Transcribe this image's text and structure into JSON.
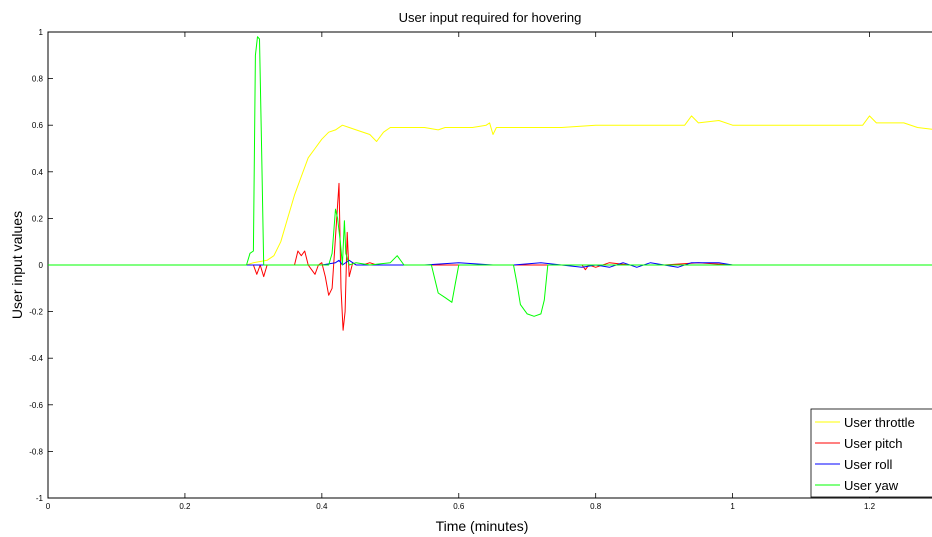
{
  "chart_data": {
    "type": "line",
    "title": "User input required for hovering",
    "xlabel": "Time (minutes)",
    "ylabel": "User input values",
    "xlim": [
      0,
      1.3
    ],
    "ylim": [
      -1,
      1
    ],
    "xticks": [
      0,
      0.2,
      0.4,
      0.6,
      0.8,
      1,
      1.2
    ],
    "xtick_labels": [
      "0",
      "0.2",
      "0.4",
      "0.6",
      "0.8",
      "1",
      "1.2"
    ],
    "yticks": [
      1,
      0.8,
      0.6,
      0.4,
      0.2,
      0,
      -0.2,
      -0.4,
      -0.6,
      -0.8,
      -1
    ],
    "ytick_labels": [
      "1",
      "0.8",
      "0.6",
      "0.4",
      "0.2",
      "0",
      "-0.2",
      "-0.4",
      "-0.6",
      "-0.8",
      "-1"
    ],
    "grid": false,
    "legend_position": "bottom-right",
    "series": [
      {
        "name": "User throttle",
        "color": "#ffff00",
        "points": [
          [
            0,
            0
          ],
          [
            0.29,
            0
          ],
          [
            0.3,
            0.01
          ],
          [
            0.32,
            0.02
          ],
          [
            0.33,
            0.04
          ],
          [
            0.34,
            0.1
          ],
          [
            0.35,
            0.2
          ],
          [
            0.36,
            0.3
          ],
          [
            0.37,
            0.38
          ],
          [
            0.38,
            0.46
          ],
          [
            0.39,
            0.5
          ],
          [
            0.4,
            0.54
          ],
          [
            0.41,
            0.57
          ],
          [
            0.42,
            0.58
          ],
          [
            0.43,
            0.6
          ],
          [
            0.44,
            0.59
          ],
          [
            0.45,
            0.58
          ],
          [
            0.47,
            0.56
          ],
          [
            0.48,
            0.53
          ],
          [
            0.49,
            0.57
          ],
          [
            0.5,
            0.59
          ],
          [
            0.52,
            0.59
          ],
          [
            0.55,
            0.59
          ],
          [
            0.57,
            0.58
          ],
          [
            0.58,
            0.59
          ],
          [
            0.62,
            0.59
          ],
          [
            0.64,
            0.6
          ],
          [
            0.645,
            0.61
          ],
          [
            0.65,
            0.56
          ],
          [
            0.655,
            0.59
          ],
          [
            0.7,
            0.59
          ],
          [
            0.75,
            0.59
          ],
          [
            0.8,
            0.6
          ],
          [
            0.85,
            0.6
          ],
          [
            0.9,
            0.6
          ],
          [
            0.93,
            0.6
          ],
          [
            0.94,
            0.64
          ],
          [
            0.95,
            0.61
          ],
          [
            0.98,
            0.62
          ],
          [
            1.0,
            0.6
          ],
          [
            1.05,
            0.6
          ],
          [
            1.1,
            0.6
          ],
          [
            1.15,
            0.6
          ],
          [
            1.19,
            0.6
          ],
          [
            1.2,
            0.64
          ],
          [
            1.21,
            0.61
          ],
          [
            1.25,
            0.61
          ],
          [
            1.27,
            0.59
          ],
          [
            1.3,
            0.58
          ]
        ]
      },
      {
        "name": "User pitch",
        "color": "#ff0000",
        "points": [
          [
            0,
            0
          ],
          [
            0.3,
            0
          ],
          [
            0.305,
            -0.04
          ],
          [
            0.31,
            0
          ],
          [
            0.315,
            -0.05
          ],
          [
            0.32,
            0
          ],
          [
            0.36,
            0
          ],
          [
            0.365,
            0.06
          ],
          [
            0.37,
            0.04
          ],
          [
            0.375,
            0.06
          ],
          [
            0.38,
            0
          ],
          [
            0.385,
            -0.02
          ],
          [
            0.39,
            -0.04
          ],
          [
            0.395,
            0
          ],
          [
            0.4,
            0.01
          ],
          [
            0.405,
            -0.05
          ],
          [
            0.41,
            -0.13
          ],
          [
            0.415,
            -0.1
          ],
          [
            0.42,
            0.12
          ],
          [
            0.425,
            0.35
          ],
          [
            0.428,
            -0.1
          ],
          [
            0.431,
            -0.28
          ],
          [
            0.434,
            -0.2
          ],
          [
            0.437,
            0.14
          ],
          [
            0.44,
            -0.05
          ],
          [
            0.445,
            0.01
          ],
          [
            0.45,
            0
          ],
          [
            0.46,
            0
          ],
          [
            0.47,
            0.01
          ],
          [
            0.48,
            0
          ],
          [
            0.5,
            0
          ],
          [
            0.55,
            0
          ],
          [
            0.6,
            0
          ],
          [
            0.65,
            0
          ],
          [
            0.7,
            0
          ],
          [
            0.75,
            0
          ],
          [
            0.78,
            0
          ],
          [
            0.785,
            -0.02
          ],
          [
            0.79,
            0
          ],
          [
            0.8,
            -0.01
          ],
          [
            0.82,
            0.01
          ],
          [
            0.85,
            0
          ],
          [
            0.9,
            0
          ],
          [
            0.95,
            0.01
          ],
          [
            1.0,
            0
          ],
          [
            1.3,
            0
          ]
        ]
      },
      {
        "name": "User roll",
        "color": "#0000ff",
        "points": [
          [
            0,
            0
          ],
          [
            0.35,
            0
          ],
          [
            0.4,
            0
          ],
          [
            0.42,
            0.01
          ],
          [
            0.425,
            0.02
          ],
          [
            0.43,
            0
          ],
          [
            0.44,
            0.02
          ],
          [
            0.45,
            0
          ],
          [
            0.5,
            0
          ],
          [
            0.55,
            0
          ],
          [
            0.6,
            0.01
          ],
          [
            0.65,
            0
          ],
          [
            0.68,
            0
          ],
          [
            0.72,
            0.01
          ],
          [
            0.75,
            0
          ],
          [
            0.78,
            -0.01
          ],
          [
            0.8,
            0
          ],
          [
            0.82,
            -0.01
          ],
          [
            0.84,
            0.01
          ],
          [
            0.86,
            -0.01
          ],
          [
            0.88,
            0.01
          ],
          [
            0.9,
            0
          ],
          [
            0.92,
            -0.01
          ],
          [
            0.94,
            0.01
          ],
          [
            0.96,
            0.01
          ],
          [
            0.98,
            0.01
          ],
          [
            1.0,
            0
          ],
          [
            1.3,
            0
          ]
        ]
      },
      {
        "name": "User yaw",
        "color": "#00ff00",
        "points": [
          [
            0,
            0
          ],
          [
            0.29,
            0
          ],
          [
            0.295,
            0.05
          ],
          [
            0.3,
            0.06
          ],
          [
            0.303,
            0.9
          ],
          [
            0.306,
            0.98
          ],
          [
            0.309,
            0.97
          ],
          [
            0.312,
            0.5
          ],
          [
            0.315,
            0
          ],
          [
            0.32,
            0
          ],
          [
            0.33,
            0
          ],
          [
            0.36,
            0
          ],
          [
            0.41,
            0
          ],
          [
            0.415,
            0.05
          ],
          [
            0.42,
            0.24
          ],
          [
            0.423,
            0.2
          ],
          [
            0.427,
            0.1
          ],
          [
            0.43,
            0
          ],
          [
            0.433,
            0.19
          ],
          [
            0.435,
            0.05
          ],
          [
            0.44,
            0
          ],
          [
            0.45,
            0.01
          ],
          [
            0.47,
            0
          ],
          [
            0.5,
            0.01
          ],
          [
            0.51,
            0.04
          ],
          [
            0.52,
            0
          ],
          [
            0.56,
            0
          ],
          [
            0.565,
            -0.06
          ],
          [
            0.57,
            -0.12
          ],
          [
            0.58,
            -0.14
          ],
          [
            0.59,
            -0.16
          ],
          [
            0.595,
            -0.08
          ],
          [
            0.6,
            0
          ],
          [
            0.62,
            0
          ],
          [
            0.66,
            0
          ],
          [
            0.68,
            0
          ],
          [
            0.685,
            -0.08
          ],
          [
            0.69,
            -0.17
          ],
          [
            0.7,
            -0.21
          ],
          [
            0.71,
            -0.22
          ],
          [
            0.72,
            -0.21
          ],
          [
            0.725,
            -0.15
          ],
          [
            0.73,
            0
          ],
          [
            0.75,
            0
          ],
          [
            1.3,
            0
          ]
        ]
      }
    ]
  }
}
